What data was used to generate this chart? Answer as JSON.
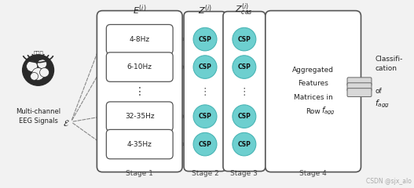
{
  "bg_color": "#f2f2f2",
  "stage1_filters": [
    "4-8Hz",
    "6-10Hz",
    "32-35Hz",
    "4-35Hz"
  ],
  "csp_color": "#6dcfcf",
  "csp_border": "#4ab5b5",
  "stage_labels": [
    "Stage 1",
    "Stage 2",
    "Stage 3",
    "Stage 4"
  ],
  "eeg_text": "Multi-channel\nEEG Signals",
  "e_label": "$E^{(i)}$",
  "z_label": "$Z^{(i)}$",
  "zcas_label": "$Z^{(i)}_{cas}$",
  "stage4_text": [
    "Aggregated",
    "Features",
    "Matrices in",
    "Row"
  ],
  "classif_text": "Classifi-\ncation\nof",
  "watermark": "CSDN @sjx_alo",
  "arrow_gray": "#888888",
  "arrow_teal": "#6dcfcf",
  "box_edge": "#555555",
  "text_color": "#222222"
}
